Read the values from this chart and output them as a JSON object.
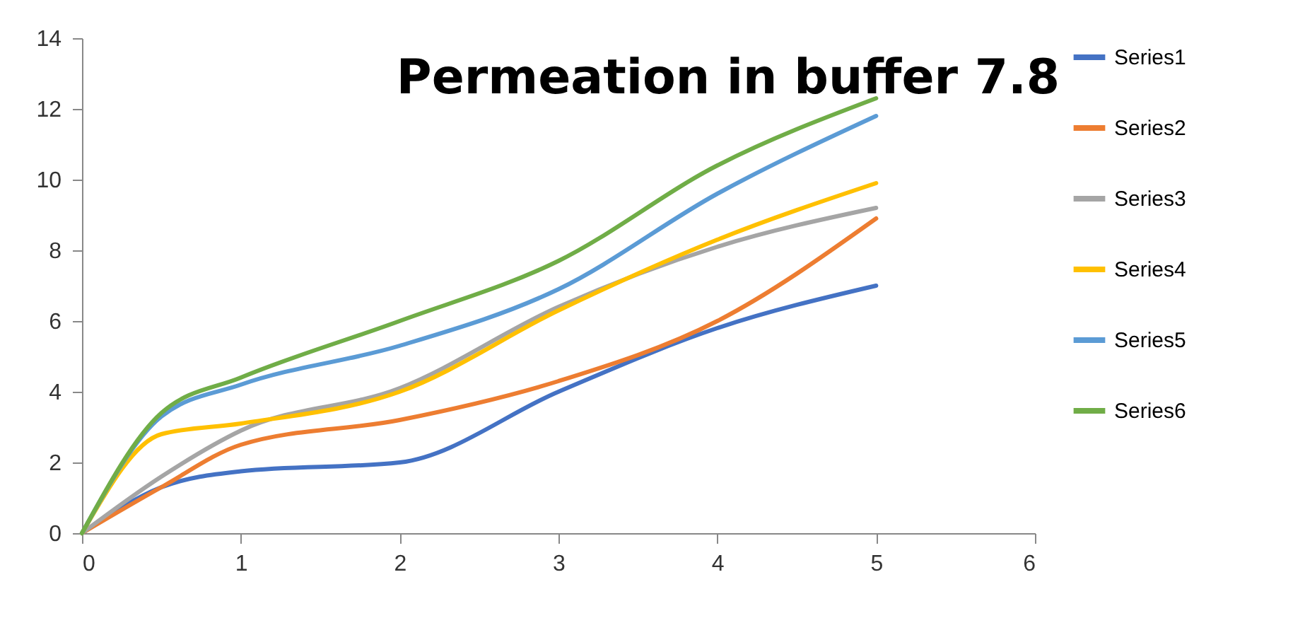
{
  "chart_data": {
    "type": "line",
    "title": "Permeation in buffer 7.8",
    "x": [
      0,
      0.5,
      1,
      2,
      3,
      4,
      5
    ],
    "xlim": [
      0,
      6
    ],
    "xticks": [
      0,
      1,
      2,
      3,
      4,
      5,
      6
    ],
    "ylim": [
      0,
      14
    ],
    "yticks": [
      0,
      2,
      4,
      6,
      8,
      10,
      12,
      14
    ],
    "grid": false,
    "legend": "right",
    "marker": "none",
    "line_style": "solid",
    "series": [
      {
        "name": "Series1",
        "color": "#4472c4",
        "values": [
          0,
          1.3,
          1.75,
          2.0,
          4.0,
          5.8,
          7.0
        ]
      },
      {
        "name": "Series2",
        "color": "#ed7d31",
        "values": [
          0,
          1.3,
          2.5,
          3.2,
          4.3,
          6.0,
          8.9
        ]
      },
      {
        "name": "Series3",
        "color": "#a5a5a5",
        "values": [
          0,
          1.6,
          2.9,
          4.1,
          6.4,
          8.1,
          9.2
        ]
      },
      {
        "name": "Series4",
        "color": "#ffc000",
        "values": [
          0,
          2.8,
          3.1,
          4.0,
          6.3,
          8.3,
          9.9
        ]
      },
      {
        "name": "Series5",
        "color": "#5b9bd5",
        "values": [
          0,
          3.3,
          4.2,
          5.3,
          6.9,
          9.6,
          11.8
        ]
      },
      {
        "name": "Series6",
        "color": "#70ad47",
        "values": [
          0,
          3.4,
          4.4,
          6.0,
          7.7,
          10.4,
          12.3
        ]
      }
    ]
  }
}
